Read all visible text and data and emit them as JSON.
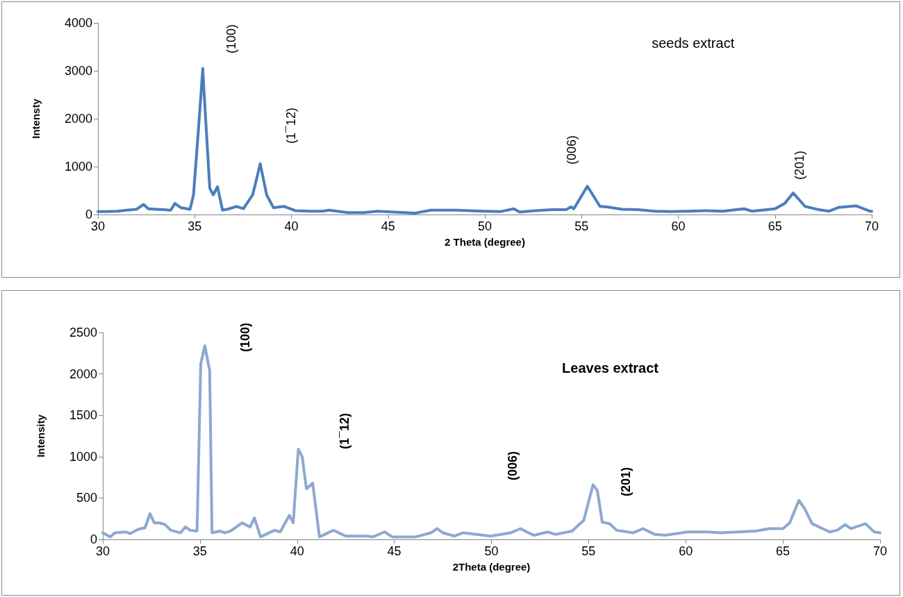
{
  "chart_data": [
    {
      "type": "line",
      "title": "seeds extract",
      "xlabel": "2 Theta (degree)",
      "ylabel": "Intensty",
      "xlim": [
        30,
        70
      ],
      "xticks": [
        30,
        35,
        40,
        45,
        50,
        55,
        60,
        65,
        70
      ],
      "ylim": [
        0,
        4000
      ],
      "yticks": [
        0,
        1000,
        2000,
        3000,
        4000
      ],
      "grid": false,
      "marker": "none",
      "line_style": "solid",
      "annotations": [
        "(100)",
        "(1¯12)",
        "(006)",
        "(201)"
      ],
      "series": [
        {
          "color": "#4a7ebb",
          "x": [
            30,
            30.5,
            31,
            31.5,
            32,
            32.36,
            32.6,
            33,
            33.4,
            33.76,
            33.98,
            34.3,
            34.76,
            34.94,
            35.2,
            35.42,
            35.48,
            35.78,
            35.96,
            36.18,
            36.44,
            36.8,
            37.16,
            37.52,
            38.0,
            38.39,
            38.72,
            39.08,
            39.62,
            40.2,
            41.0,
            41.6,
            41.95,
            42.9,
            43.75,
            44.47,
            45.3,
            46.4,
            47.2,
            48.5,
            49.9,
            50.8,
            51.5,
            51.8,
            52.6,
            53.5,
            54.2,
            54.45,
            54.6,
            55.3,
            55.95,
            56.3,
            57.1,
            57.9,
            58.8,
            59.6,
            60.5,
            61.4,
            62.3,
            63.4,
            63.8,
            65.0,
            65.5,
            65.94,
            66.55,
            67.26,
            67.8,
            68.3,
            69.2,
            69.9,
            70
          ],
          "values": [
            60,
            60,
            70,
            90,
            110,
            210,
            120,
            110,
            100,
            90,
            230,
            140,
            110,
            410,
            1800,
            3050,
            2590,
            550,
            410,
            580,
            90,
            120,
            170,
            120,
            410,
            1060,
            410,
            140,
            170,
            80,
            70,
            70,
            90,
            40,
            40,
            70,
            50,
            30,
            90,
            90,
            70,
            60,
            120,
            50,
            80,
            100,
            100,
            160,
            120,
            590,
            170,
            160,
            110,
            100,
            70,
            60,
            70,
            80,
            70,
            120,
            70,
            120,
            230,
            450,
            170,
            100,
            70,
            150,
            180,
            70,
            70
          ]
        }
      ]
    },
    {
      "type": "line",
      "title": "Leaves extract",
      "xlabel": "2Theta (degree)",
      "ylabel": "Intensity",
      "xlim": [
        30,
        70
      ],
      "xticks": [
        30,
        35,
        40,
        45,
        50,
        55,
        60,
        65,
        70
      ],
      "ylim": [
        0,
        2500
      ],
      "yticks": [
        0,
        500,
        1000,
        1500,
        2000,
        2500
      ],
      "grid": false,
      "marker": "none",
      "line_style": "solid",
      "annotations": [
        "(100)",
        "(1¯12)",
        "(006)",
        "(201)"
      ],
      "series": [
        {
          "color": "#8ea8d0",
          "x": [
            30,
            30.38,
            30.62,
            31.2,
            31.4,
            31.8,
            32.17,
            32.43,
            32.65,
            32.9,
            33.2,
            33.5,
            34.0,
            34.25,
            34.5,
            34.85,
            35.04,
            35.25,
            35.5,
            35.62,
            36.04,
            36.27,
            36.57,
            37.17,
            37.58,
            37.8,
            38.12,
            38.83,
            39.13,
            39.6,
            39.8,
            40.06,
            40.26,
            40.48,
            40.8,
            41.15,
            41.87,
            42.5,
            43.6,
            43.9,
            44.5,
            44.9,
            46.1,
            46.9,
            47.2,
            47.5,
            48.1,
            48.55,
            49.95,
            51.0,
            51.5,
            51.9,
            52.2,
            52.9,
            53.3,
            54.15,
            54.75,
            55.23,
            55.45,
            55.7,
            56.07,
            56.45,
            57.3,
            57.8,
            58.4,
            58.95,
            60.1,
            61.1,
            61.8,
            63.6,
            64.3,
            65.0,
            65.35,
            65.82,
            66.1,
            66.5,
            67.4,
            67.8,
            68.2,
            68.5,
            68.75,
            69.25,
            69.7,
            70
          ],
          "values": [
            80,
            30,
            80,
            90,
            70,
            120,
            140,
            310,
            200,
            200,
            180,
            110,
            80,
            150,
            110,
            100,
            2120,
            2340,
            2040,
            80,
            100,
            80,
            100,
            200,
            150,
            260,
            30,
            110,
            90,
            290,
            200,
            1090,
            1000,
            610,
            680,
            30,
            110,
            40,
            40,
            30,
            90,
            30,
            30,
            80,
            130,
            80,
            40,
            80,
            40,
            80,
            130,
            80,
            50,
            90,
            60,
            100,
            230,
            660,
            590,
            210,
            190,
            110,
            80,
            130,
            60,
            50,
            90,
            90,
            80,
            100,
            130,
            130,
            200,
            470,
            380,
            190,
            90,
            110,
            180,
            130,
            150,
            190,
            90,
            80
          ]
        }
      ]
    }
  ]
}
